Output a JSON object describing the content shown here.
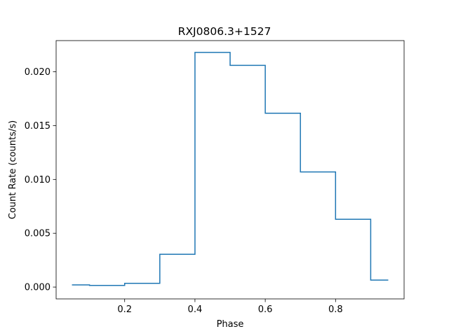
{
  "chart_data": {
    "type": "line",
    "step": "mid",
    "title": "RXJ0806.3+1527",
    "xlabel": "Phase",
    "ylabel": "Count Rate (counts/s)",
    "xlim": [
      0.005,
      0.995
    ],
    "ylim": [
      -0.0011,
      0.0229
    ],
    "xticks": [
      0.2,
      0.4,
      0.6,
      0.8
    ],
    "xtick_labels": [
      "0.2",
      "0.4",
      "0.6",
      "0.8"
    ],
    "yticks": [
      0.0,
      0.005,
      0.01,
      0.015,
      0.02
    ],
    "ytick_labels": [
      "0.000",
      "0.005",
      "0.010",
      "0.015",
      "0.020"
    ],
    "grid": false,
    "series": [
      {
        "color": "#1f77b4",
        "x": [
          0.05,
          0.15,
          0.25,
          0.35,
          0.45,
          0.55,
          0.65,
          0.75,
          0.85,
          0.95
        ],
        "y": [
          0.0002,
          0.00015,
          0.00035,
          0.00305,
          0.0218,
          0.0206,
          0.01615,
          0.0107,
          0.0063,
          0.00065
        ]
      }
    ]
  }
}
